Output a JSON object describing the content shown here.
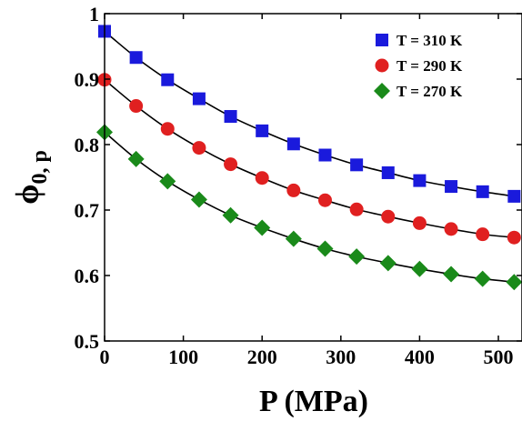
{
  "chart_data": {
    "type": "scatter",
    "xlabel": "P (MPa)",
    "ylabel": {
      "main": "ϕ",
      "sub": "0, p"
    },
    "xlim": [
      0,
      530
    ],
    "ylim": [
      0.5,
      1.0
    ],
    "xticks": [
      0,
      100,
      200,
      300,
      400,
      500
    ],
    "yticks": [
      0.5,
      0.6,
      0.7,
      0.8,
      0.9,
      1.0
    ],
    "ytick_labels": [
      "0.5",
      "0.6",
      "0.7",
      "0.8",
      "0.9",
      "1"
    ],
    "grid": false,
    "legend_position": "top-right",
    "series": [
      {
        "name": "T = 310 K",
        "marker": "square",
        "color": "#1a1adc",
        "x": [
          0,
          40,
          80,
          120,
          160,
          200,
          240,
          280,
          320,
          360,
          400,
          440,
          480,
          520
        ],
        "y": [
          0.973,
          0.933,
          0.899,
          0.87,
          0.843,
          0.821,
          0.801,
          0.784,
          0.769,
          0.757,
          0.745,
          0.736,
          0.728,
          0.721
        ]
      },
      {
        "name": "T = 290 K",
        "marker": "circle",
        "color": "#e02020",
        "x": [
          0,
          40,
          80,
          120,
          160,
          200,
          240,
          280,
          320,
          360,
          400,
          440,
          480,
          520
        ],
        "y": [
          0.899,
          0.859,
          0.824,
          0.795,
          0.77,
          0.749,
          0.73,
          0.715,
          0.701,
          0.69,
          0.68,
          0.671,
          0.663,
          0.658
        ]
      },
      {
        "name": "T = 270 K",
        "marker": "diamond",
        "color": "#1a8a1a",
        "x": [
          0,
          40,
          80,
          120,
          160,
          200,
          240,
          280,
          320,
          360,
          400,
          440,
          480,
          520
        ],
        "y": [
          0.819,
          0.778,
          0.744,
          0.716,
          0.692,
          0.673,
          0.656,
          0.641,
          0.629,
          0.619,
          0.61,
          0.602,
          0.595,
          0.59
        ]
      }
    ]
  }
}
